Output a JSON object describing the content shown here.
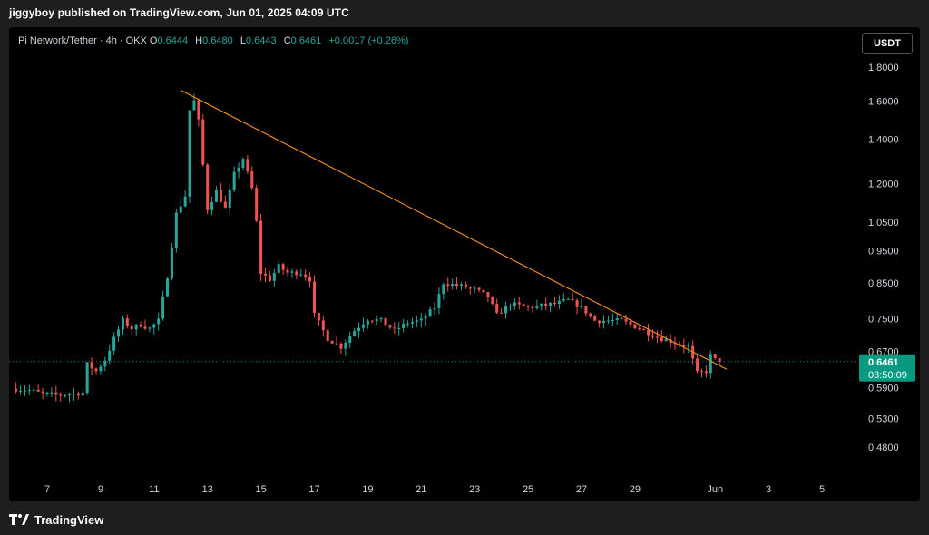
{
  "header": {
    "title": "jiggyboy published on TradingView.com, Jun 01, 2025 04:09 UTC"
  },
  "legend": {
    "symbol": "Pi Network/Tether · 4h · OKX",
    "o_label": "O",
    "o": "0.6444",
    "h_label": "H",
    "h": "0.6480",
    "l_label": "L",
    "l": "0.6443",
    "c_label": "C",
    "c": "0.6461",
    "change": "+0.0017 (+0.26%)"
  },
  "currency_button": "USDT",
  "footer": {
    "brand": "TradingView"
  },
  "colors": {
    "up": "#26a69a",
    "down": "#ef5350",
    "trendline": "#f7931a",
    "price_tag": "#089981",
    "axis_text": "#d1d4dc",
    "background": "#000000"
  },
  "chart_data": {
    "type": "candlestick",
    "title": "",
    "xlabel": "",
    "ylabel": "",
    "y_scale": "log",
    "ylim": [
      0.445,
      2.0
    ],
    "grid": false,
    "y_ticks": [
      "1.8000",
      "1.6000",
      "1.4000",
      "1.2000",
      "1.0500",
      "0.9500",
      "0.8500",
      "0.7500",
      "0.6700",
      "0.5900",
      "0.5300",
      "0.4800"
    ],
    "x_ticks": [
      {
        "label": "7",
        "date": "2025-05-07"
      },
      {
        "label": "9",
        "date": "2025-05-09"
      },
      {
        "label": "11",
        "date": "2025-05-11"
      },
      {
        "label": "13",
        "date": "2025-05-13"
      },
      {
        "label": "15",
        "date": "2025-05-15"
      },
      {
        "label": "17",
        "date": "2025-05-17"
      },
      {
        "label": "19",
        "date": "2025-05-19"
      },
      {
        "label": "21",
        "date": "2025-05-21"
      },
      {
        "label": "23",
        "date": "2025-05-23"
      },
      {
        "label": "25",
        "date": "2025-05-25"
      },
      {
        "label": "27",
        "date": "2025-05-27"
      },
      {
        "label": "29",
        "date": "2025-05-29"
      },
      {
        "label": "Jun",
        "date": "2025-06-01"
      },
      {
        "label": "3",
        "date": "2025-06-03"
      },
      {
        "label": "5",
        "date": "2025-06-05"
      }
    ],
    "current_price": "0.6461",
    "countdown": "03:50:09",
    "trendline": {
      "from": {
        "date": "2025-05-12 00:00",
        "price": 1.66
      },
      "to": {
        "date": "2025-06-01 04:00",
        "price": 0.635
      }
    },
    "close_path": [
      [
        "2025-05-05 20:00",
        0.588
      ],
      [
        "2025-05-06 08:00",
        0.585
      ],
      [
        "2025-05-06 20:00",
        0.578
      ],
      [
        "2025-05-07 08:00",
        0.575
      ],
      [
        "2025-05-07 20:00",
        0.577
      ],
      [
        "2025-05-08 08:00",
        0.58
      ],
      [
        "2025-05-08 12:00",
        0.64
      ],
      [
        "2025-05-08 20:00",
        0.625
      ],
      [
        "2025-05-09 04:00",
        0.65
      ],
      [
        "2025-05-09 12:00",
        0.7
      ],
      [
        "2025-05-09 20:00",
        0.745
      ],
      [
        "2025-05-10 04:00",
        0.725
      ],
      [
        "2025-05-10 12:00",
        0.735
      ],
      [
        "2025-05-10 20:00",
        0.725
      ],
      [
        "2025-05-11 04:00",
        0.745
      ],
      [
        "2025-05-11 12:00",
        0.87
      ],
      [
        "2025-05-11 20:00",
        1.08
      ],
      [
        "2025-05-12 04:00",
        1.15
      ],
      [
        "2025-05-12 08:00",
        1.55
      ],
      [
        "2025-05-12 12:00",
        1.6
      ],
      [
        "2025-05-12 16:00",
        1.49
      ],
      [
        "2025-05-13 00:00",
        1.1
      ],
      [
        "2025-05-13 08:00",
        1.17
      ],
      [
        "2025-05-13 16:00",
        1.1
      ],
      [
        "2025-05-14 00:00",
        1.24
      ],
      [
        "2025-05-14 08:00",
        1.31
      ],
      [
        "2025-05-14 16:00",
        1.18
      ],
      [
        "2025-05-14 20:00",
        1.05
      ],
      [
        "2025-05-15 00:00",
        0.88
      ],
      [
        "2025-05-15 08:00",
        0.86
      ],
      [
        "2025-05-15 16:00",
        0.9
      ],
      [
        "2025-05-16 00:00",
        0.88
      ],
      [
        "2025-05-16 12:00",
        0.88
      ],
      [
        "2025-05-16 20:00",
        0.86
      ],
      [
        "2025-05-17 00:00",
        0.76
      ],
      [
        "2025-05-17 12:00",
        0.7
      ],
      [
        "2025-05-18 00:00",
        0.68
      ],
      [
        "2025-05-18 12:00",
        0.72
      ],
      [
        "2025-05-19 00:00",
        0.75
      ],
      [
        "2025-05-19 12:00",
        0.745
      ],
      [
        "2025-05-20 00:00",
        0.72
      ],
      [
        "2025-05-20 12:00",
        0.74
      ],
      [
        "2025-05-21 00:00",
        0.745
      ],
      [
        "2025-05-21 12:00",
        0.78
      ],
      [
        "2025-05-21 20:00",
        0.85
      ],
      [
        "2025-05-22 12:00",
        0.84
      ],
      [
        "2025-05-23 00:00",
        0.83
      ],
      [
        "2025-05-23 12:00",
        0.81
      ],
      [
        "2025-05-23 20:00",
        0.76
      ],
      [
        "2025-05-24 08:00",
        0.79
      ],
      [
        "2025-05-25 00:00",
        0.78
      ],
      [
        "2025-05-26 00:00",
        0.79
      ],
      [
        "2025-05-26 12:00",
        0.8
      ],
      [
        "2025-05-27 00:00",
        0.78
      ],
      [
        "2025-05-27 12:00",
        0.745
      ],
      [
        "2025-05-28 12:00",
        0.745
      ],
      [
        "2025-05-29 00:00",
        0.73
      ],
      [
        "2025-05-29 12:00",
        0.715
      ],
      [
        "2025-05-30 00:00",
        0.7
      ],
      [
        "2025-05-30 12:00",
        0.69
      ],
      [
        "2025-05-31 00:00",
        0.68
      ],
      [
        "2025-05-31 08:00",
        0.62
      ],
      [
        "2025-05-31 16:00",
        0.625
      ],
      [
        "2025-05-31 20:00",
        0.66
      ],
      [
        "2025-06-01 00:00",
        0.65
      ],
      [
        "2025-06-01 04:00",
        0.6461
      ]
    ]
  }
}
